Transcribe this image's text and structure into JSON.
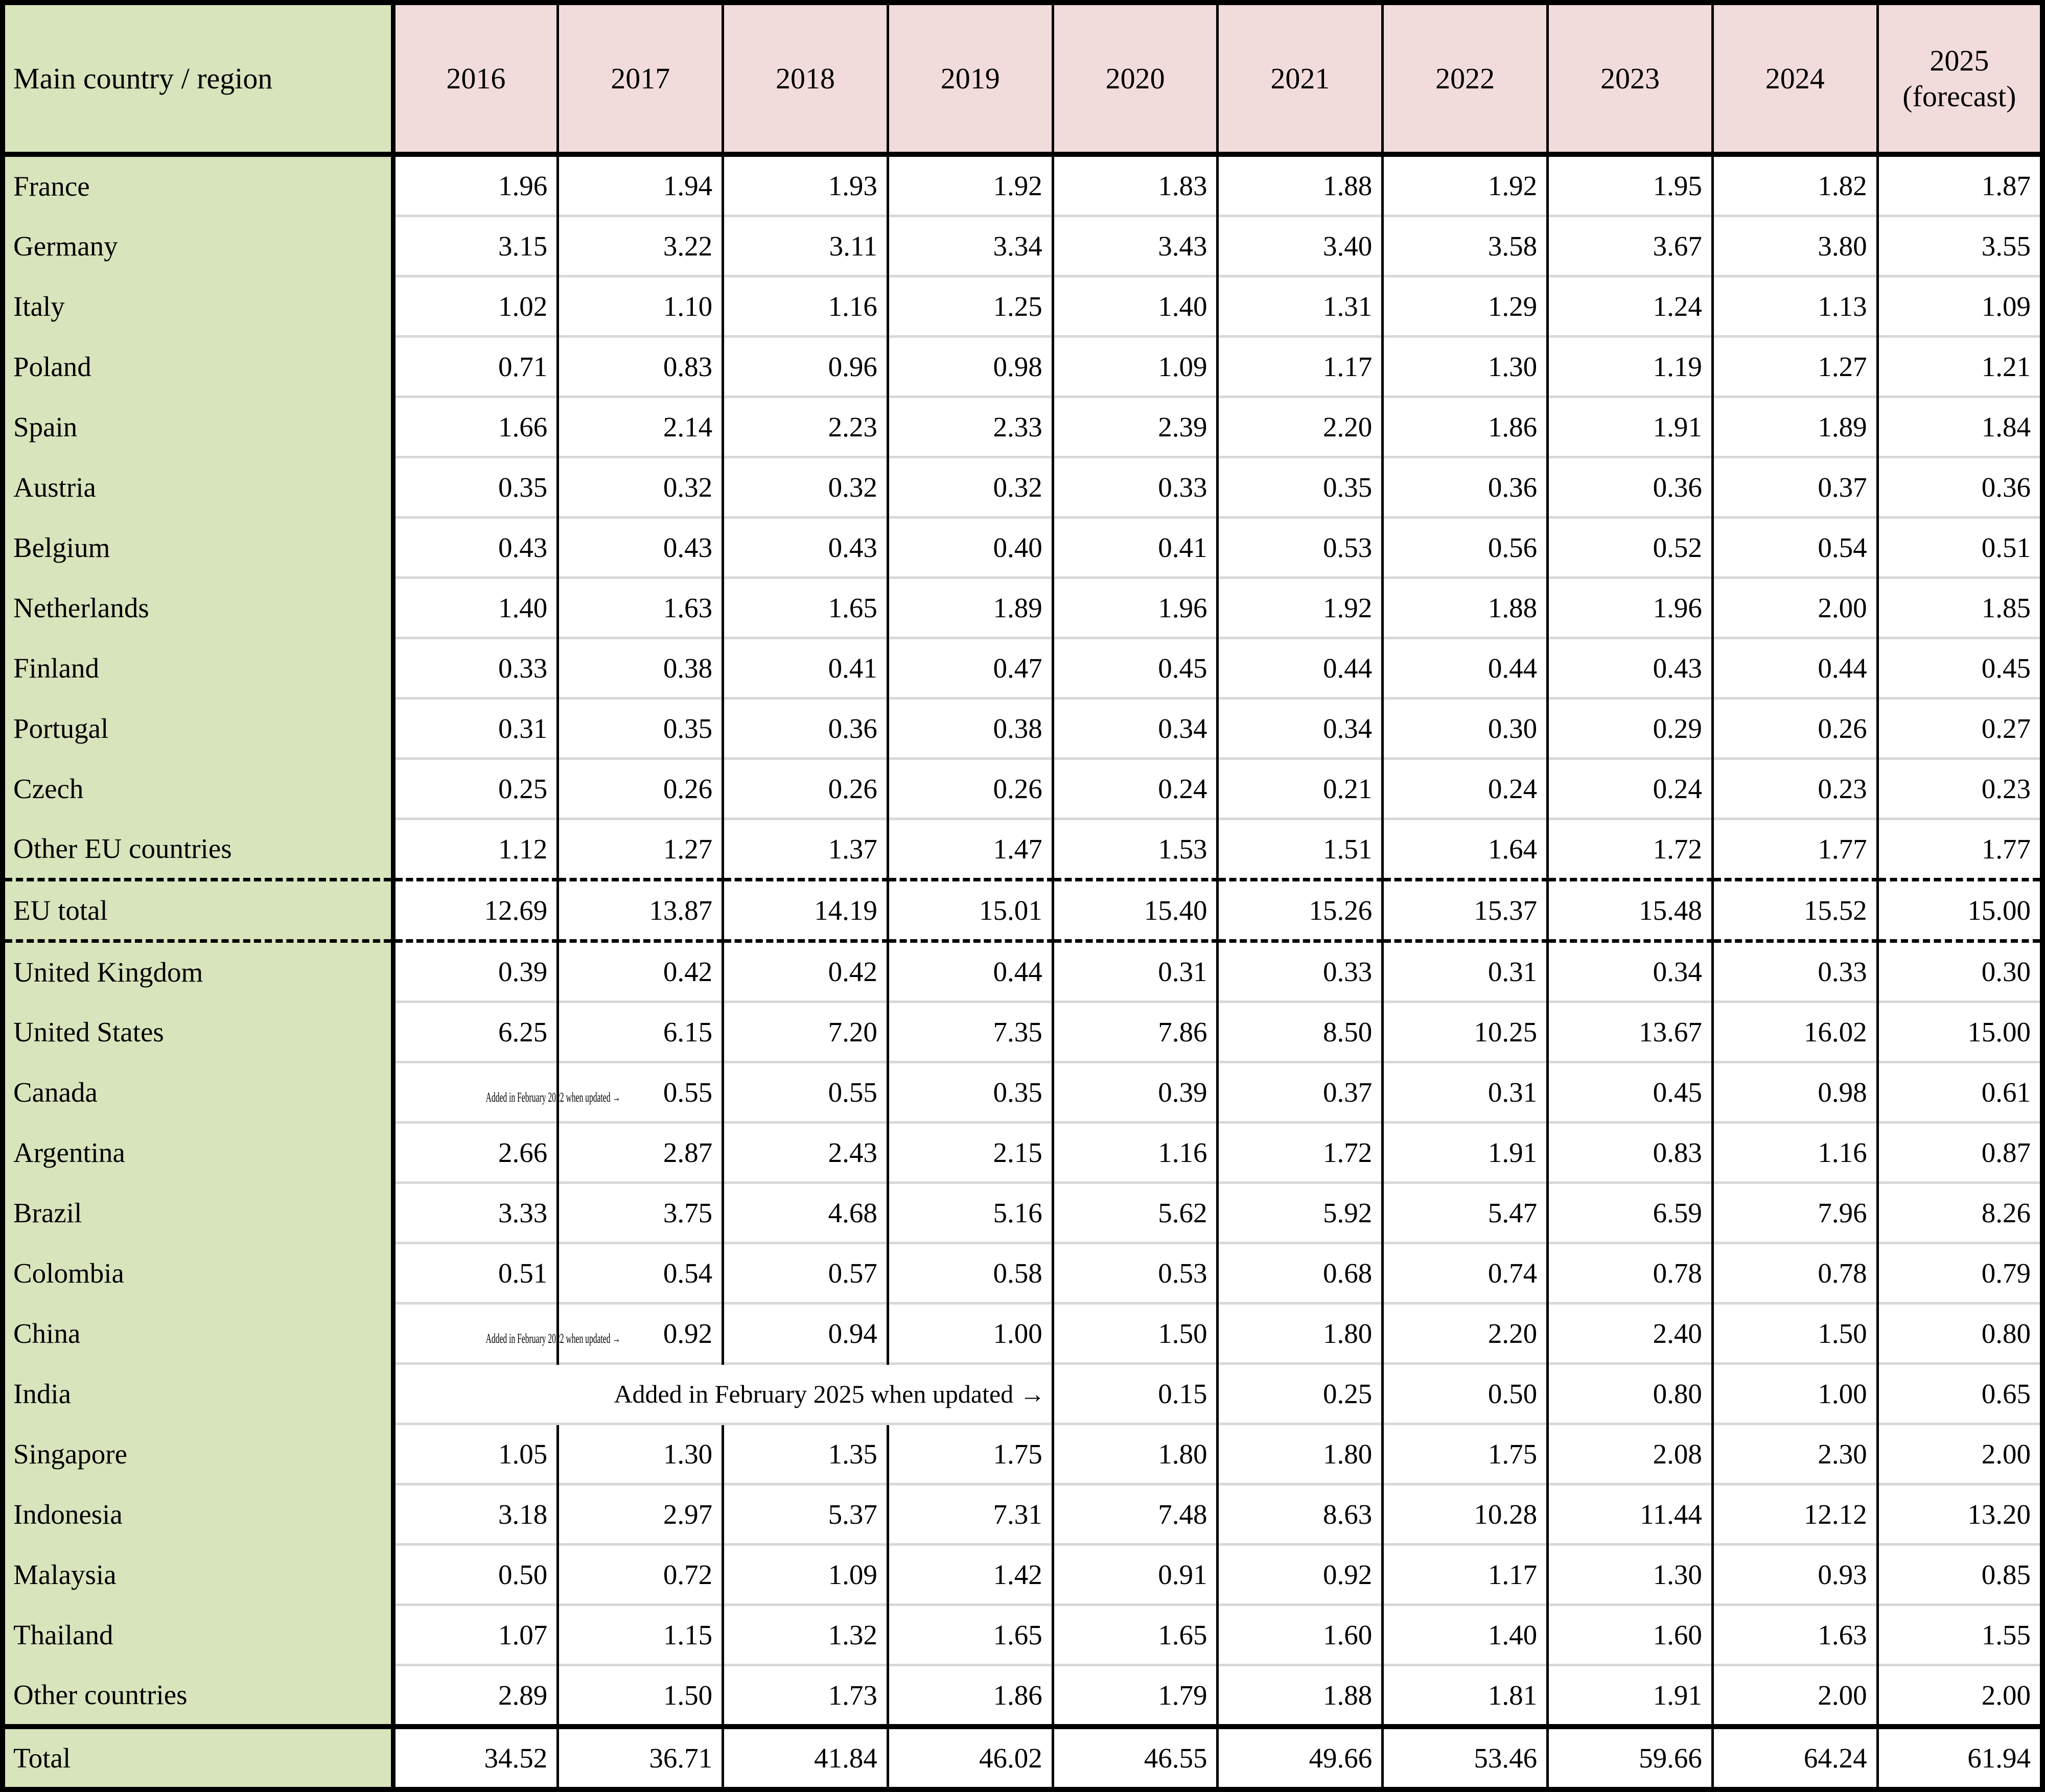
{
  "table": {
    "header": {
      "region": "Main country / region",
      "years": [
        "2016",
        "2017",
        "2018",
        "2019",
        "2020",
        "2021",
        "2022",
        "2023",
        "2024",
        "2025\n(forecast)"
      ]
    },
    "colors": {
      "label_bg": "#d8e4bc",
      "year_header_bg": "#f1dcdb",
      "row_divider": "#d8d8d8",
      "border": "#000000"
    },
    "rows": [
      {
        "name": "France",
        "type": "country",
        "cells": [
          "1.96",
          "1.94",
          "1.93",
          "1.92",
          "1.83",
          "1.88",
          "1.92",
          "1.95",
          "1.82",
          "1.87"
        ]
      },
      {
        "name": "Germany",
        "type": "country",
        "cells": [
          "3.15",
          "3.22",
          "3.11",
          "3.34",
          "3.43",
          "3.40",
          "3.58",
          "3.67",
          "3.80",
          "3.55"
        ]
      },
      {
        "name": "Italy",
        "type": "country",
        "cells": [
          "1.02",
          "1.10",
          "1.16",
          "1.25",
          "1.40",
          "1.31",
          "1.29",
          "1.24",
          "1.13",
          "1.09"
        ]
      },
      {
        "name": "Poland",
        "type": "country",
        "cells": [
          "0.71",
          "0.83",
          "0.96",
          "0.98",
          "1.09",
          "1.17",
          "1.30",
          "1.19",
          "1.27",
          "1.21"
        ]
      },
      {
        "name": "Spain",
        "type": "country",
        "cells": [
          "1.66",
          "2.14",
          "2.23",
          "2.33",
          "2.39",
          "2.20",
          "1.86",
          "1.91",
          "1.89",
          "1.84"
        ]
      },
      {
        "name": "Austria",
        "type": "country",
        "cells": [
          "0.35",
          "0.32",
          "0.32",
          "0.32",
          "0.33",
          "0.35",
          "0.36",
          "0.36",
          "0.37",
          "0.36"
        ]
      },
      {
        "name": "Belgium",
        "type": "country",
        "cells": [
          "0.43",
          "0.43",
          "0.43",
          "0.40",
          "0.41",
          "0.53",
          "0.56",
          "0.52",
          "0.54",
          "0.51"
        ]
      },
      {
        "name": "Netherlands",
        "type": "country",
        "cells": [
          "1.40",
          "1.63",
          "1.65",
          "1.89",
          "1.96",
          "1.92",
          "1.88",
          "1.96",
          "2.00",
          "1.85"
        ]
      },
      {
        "name": "Finland",
        "type": "country",
        "cells": [
          "0.33",
          "0.38",
          "0.41",
          "0.47",
          "0.45",
          "0.44",
          "0.44",
          "0.43",
          "0.44",
          "0.45"
        ]
      },
      {
        "name": "Portugal",
        "type": "country",
        "cells": [
          "0.31",
          "0.35",
          "0.36",
          "0.38",
          "0.34",
          "0.34",
          "0.30",
          "0.29",
          "0.26",
          "0.27"
        ]
      },
      {
        "name": "Czech",
        "type": "country",
        "cells": [
          "0.25",
          "0.26",
          "0.26",
          "0.26",
          "0.24",
          "0.21",
          "0.24",
          "0.24",
          "0.23",
          "0.23"
        ]
      },
      {
        "name": "Other EU countries",
        "type": "country",
        "cells": [
          "1.12",
          "1.27",
          "1.37",
          "1.47",
          "1.53",
          "1.51",
          "1.64",
          "1.72",
          "1.77",
          "1.77"
        ]
      },
      {
        "name": "EU total",
        "type": "subtotal",
        "cells": [
          "12.69",
          "13.87",
          "14.19",
          "15.01",
          "15.40",
          "15.26",
          "15.37",
          "15.48",
          "15.52",
          "15.00"
        ]
      },
      {
        "name": "United Kingdom",
        "type": "country",
        "cells": [
          "0.39",
          "0.42",
          "0.42",
          "0.44",
          "0.31",
          "0.33",
          "0.31",
          "0.34",
          "0.33",
          "0.30"
        ]
      },
      {
        "name": "United States",
        "type": "country",
        "cells": [
          "6.25",
          "6.15",
          "7.20",
          "7.35",
          "7.86",
          "8.50",
          "10.25",
          "13.67",
          "16.02",
          "15.00"
        ]
      },
      {
        "name": "Canada",
        "type": "country",
        "cells": [
          {
            "t": "note",
            "text": "Added in February 2022 when updated →"
          },
          "0.55",
          "0.55",
          "0.35",
          "0.39",
          "0.37",
          "0.31",
          "0.45",
          "0.98",
          "0.61"
        ]
      },
      {
        "name": "Argentina",
        "type": "country",
        "cells": [
          "2.66",
          "2.87",
          "2.43",
          "2.15",
          "1.16",
          "1.72",
          "1.91",
          "0.83",
          "1.16",
          "0.87"
        ]
      },
      {
        "name": "Brazil",
        "type": "country",
        "cells": [
          "3.33",
          "3.75",
          "4.68",
          "5.16",
          "5.62",
          "5.92",
          "5.47",
          "6.59",
          "7.96",
          "8.26"
        ]
      },
      {
        "name": "Colombia",
        "type": "country",
        "cells": [
          "0.51",
          "0.54",
          "0.57",
          "0.58",
          "0.53",
          "0.68",
          "0.74",
          "0.78",
          "0.78",
          "0.79"
        ]
      },
      {
        "name": "China",
        "type": "country",
        "cells": [
          {
            "t": "note",
            "text": "Added in February 2022 when updated →"
          },
          "0.92",
          "0.94",
          "1.00",
          "1.50",
          "1.80",
          "2.20",
          "2.40",
          "1.50",
          "0.80"
        ]
      },
      {
        "name": "India",
        "type": "country",
        "cells": [
          {
            "t": "merged_note",
            "span": 4,
            "text": "Added in February 2025 when updated →"
          },
          "0.15",
          "0.25",
          "0.50",
          "0.80",
          "1.00",
          "0.65"
        ]
      },
      {
        "name": "Singapore",
        "type": "country",
        "cells": [
          "1.05",
          "1.30",
          "1.35",
          "1.75",
          "1.80",
          "1.80",
          "1.75",
          "2.08",
          "2.30",
          "2.00"
        ]
      },
      {
        "name": "Indonesia",
        "type": "country",
        "cells": [
          "3.18",
          "2.97",
          "5.37",
          "7.31",
          "7.48",
          "8.63",
          "10.28",
          "11.44",
          "12.12",
          "13.20"
        ]
      },
      {
        "name": "Malaysia",
        "type": "country",
        "cells": [
          "0.50",
          "0.72",
          "1.09",
          "1.42",
          "0.91",
          "0.92",
          "1.17",
          "1.30",
          "0.93",
          "0.85"
        ]
      },
      {
        "name": "Thailand",
        "type": "country",
        "cells": [
          "1.07",
          "1.15",
          "1.32",
          "1.65",
          "1.65",
          "1.60",
          "1.40",
          "1.60",
          "1.63",
          "1.55"
        ]
      },
      {
        "name": "Other countries",
        "type": "country",
        "cells": [
          "2.89",
          "1.50",
          "1.73",
          "1.86",
          "1.79",
          "1.88",
          "1.81",
          "1.91",
          "2.00",
          "2.00"
        ]
      },
      {
        "name": "Total",
        "type": "grand_total",
        "cells": [
          "34.52",
          "36.71",
          "41.84",
          "46.02",
          "46.55",
          "49.66",
          "53.46",
          "59.66",
          "64.24",
          "61.94"
        ]
      }
    ]
  }
}
